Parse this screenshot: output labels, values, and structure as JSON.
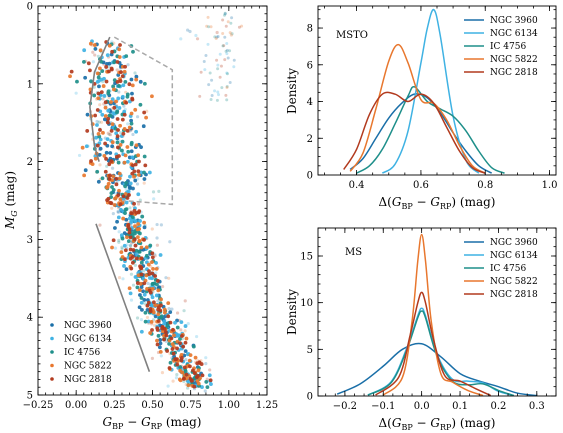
{
  "chart_data": [
    {
      "type": "scatter",
      "panel": "cmd",
      "xlabel": "G_BP − G_RP (mag)",
      "ylabel": "M_G (mag)",
      "xlim": [
        -0.25,
        1.25
      ],
      "ylim": [
        5,
        0
      ],
      "xticks": [
        "−0.25",
        "0.00",
        "0.25",
        "0.50",
        "0.75",
        "1.00",
        "1.25"
      ],
      "xtick_values": [
        -0.25,
        0,
        0.25,
        0.5,
        0.75,
        1.0,
        1.25
      ],
      "yticks": [
        "0",
        "1",
        "2",
        "3",
        "4",
        "5"
      ],
      "ytick_values": [
        0,
        1,
        2,
        3,
        4,
        5
      ],
      "legend_position": "lower-left",
      "series": [
        {
          "name": "NGC 3960",
          "color": "#1a6fa8"
        },
        {
          "name": "NGC 6134",
          "color": "#3fb2e3"
        },
        {
          "name": "IC 4756",
          "color": "#1e8f8a"
        },
        {
          "name": "NGC 5822",
          "color": "#e8772e"
        },
        {
          "name": "NGC 2818",
          "color": "#b23a1e"
        }
      ],
      "ridge": [
        [
          0.16,
          0.45
        ],
        [
          0.17,
          0.8
        ],
        [
          0.18,
          1.2
        ],
        [
          0.19,
          1.6
        ],
        [
          0.2,
          1.95
        ],
        [
          0.26,
          2.3
        ],
        [
          0.32,
          2.7
        ],
        [
          0.37,
          3.1
        ],
        [
          0.43,
          3.5
        ],
        [
          0.5,
          3.9
        ],
        [
          0.57,
          4.2
        ],
        [
          0.65,
          4.5
        ],
        [
          0.74,
          4.8
        ],
        [
          0.8,
          5.0
        ]
      ],
      "msto_box_dashed": [
        [
          0.25,
          0.4
        ],
        [
          0.63,
          0.82
        ],
        [
          0.63,
          2.55
        ],
        [
          0.3,
          2.5
        ]
      ],
      "envelope_upper_solid": [
        [
          0.22,
          0.4
        ],
        [
          0.12,
          0.85
        ],
        [
          0.09,
          1.3
        ],
        [
          0.12,
          1.8
        ],
        [
          0.15,
          2.0
        ]
      ],
      "envelope_lower_solid": [
        [
          0.13,
          2.8
        ],
        [
          0.48,
          4.7
        ]
      ]
    },
    {
      "type": "area",
      "panel": "msto",
      "label": "MSTO",
      "xlabel": "Δ(G_BP − G_RP) (mag)",
      "ylabel": "Density",
      "xlim": [
        0.28,
        1.02
      ],
      "ylim": [
        0,
        9.2
      ],
      "xticks": [
        "0.4",
        "0.6",
        "0.8",
        "1.0"
      ],
      "xtick_values": [
        0.4,
        0.6,
        0.8,
        1.0
      ],
      "yticks": [
        "0",
        "2",
        "4",
        "6",
        "8"
      ],
      "ytick_values": [
        0,
        2,
        4,
        6,
        8
      ],
      "legend_position": "top-right",
      "series": [
        {
          "name": "NGC 3960",
          "color": "#1a6fa8",
          "x": [
            0.38,
            0.42,
            0.46,
            0.5,
            0.54,
            0.58,
            0.62,
            0.66,
            0.7,
            0.74,
            0.78,
            0.82
          ],
          "y": [
            0.3,
            0.9,
            2.0,
            3.1,
            3.9,
            4.4,
            4.2,
            3.4,
            2.3,
            1.3,
            0.5,
            0.1
          ]
        },
        {
          "name": "NGC 6134",
          "color": "#3fb2e3",
          "x": [
            0.48,
            0.52,
            0.56,
            0.6,
            0.62,
            0.64,
            0.66,
            0.7,
            0.74,
            0.78
          ],
          "y": [
            0.1,
            0.6,
            2.4,
            6.1,
            8.0,
            9.0,
            7.6,
            3.2,
            0.8,
            0.1
          ]
        },
        {
          "name": "IC 4756",
          "color": "#1e8f8a",
          "x": [
            0.4,
            0.44,
            0.48,
            0.52,
            0.56,
            0.58,
            0.62,
            0.66,
            0.7,
            0.74,
            0.78,
            0.82,
            0.86
          ],
          "y": [
            0.1,
            0.5,
            1.4,
            2.8,
            4.3,
            4.8,
            4.0,
            3.6,
            3.2,
            2.4,
            1.3,
            0.4,
            0.1
          ]
        },
        {
          "name": "NGC 5822",
          "color": "#e8772e",
          "x": [
            0.38,
            0.42,
            0.46,
            0.5,
            0.53,
            0.56,
            0.6,
            0.64,
            0.68,
            0.72,
            0.76,
            0.8
          ],
          "y": [
            0.2,
            1.2,
            3.6,
            6.2,
            7.1,
            6.1,
            4.1,
            3.9,
            3.0,
            1.6,
            0.5,
            0.1
          ]
        },
        {
          "name": "NGC 2818",
          "color": "#b23a1e",
          "x": [
            0.36,
            0.4,
            0.44,
            0.48,
            0.52,
            0.56,
            0.6,
            0.64,
            0.68,
            0.72,
            0.76,
            0.8
          ],
          "y": [
            0.3,
            1.4,
            3.3,
            4.4,
            4.4,
            4.0,
            4.4,
            3.9,
            2.6,
            1.3,
            0.4,
            0.1
          ]
        }
      ]
    },
    {
      "type": "area",
      "panel": "ms",
      "label": "MS",
      "xlabel": "Δ(G_BP − G_RP) (mag)",
      "ylabel": "Density",
      "xlim": [
        -0.27,
        0.35
      ],
      "ylim": [
        0,
        18
      ],
      "xticks": [
        "−0.2",
        "−0.1",
        "0.0",
        "0.1",
        "0.2",
        "0.3"
      ],
      "xtick_values": [
        -0.2,
        -0.1,
        0.0,
        0.1,
        0.2,
        0.3
      ],
      "yticks": [
        "0",
        "5",
        "10",
        "15"
      ],
      "ytick_values": [
        0,
        5,
        10,
        15
      ],
      "legend_position": "top-right",
      "series": [
        {
          "name": "NGC 3960",
          "color": "#1a6fa8",
          "x": [
            -0.22,
            -0.16,
            -0.1,
            -0.05,
            0.0,
            0.05,
            0.1,
            0.15,
            0.2,
            0.25,
            0.3
          ],
          "y": [
            0.2,
            1.3,
            3.2,
            5.0,
            5.6,
            4.2,
            2.4,
            1.6,
            1.0,
            0.3,
            0.05
          ]
        },
        {
          "name": "NGC 6134",
          "color": "#3fb2e3",
          "x": [
            -0.14,
            -0.08,
            -0.04,
            -0.01,
            0.0,
            0.01,
            0.04,
            0.08,
            0.12,
            0.16,
            0.2,
            0.24
          ],
          "y": [
            0.1,
            1.5,
            5.0,
            8.6,
            9.4,
            8.6,
            4.5,
            1.8,
            1.6,
            1.4,
            0.5,
            0.05
          ]
        },
        {
          "name": "IC 4756",
          "color": "#1e8f8a",
          "x": [
            -0.14,
            -0.08,
            -0.04,
            -0.01,
            0.0,
            0.01,
            0.04,
            0.08,
            0.12,
            0.16,
            0.2,
            0.24
          ],
          "y": [
            0.1,
            1.4,
            4.8,
            8.4,
            9.1,
            8.4,
            4.3,
            1.6,
            1.2,
            1.3,
            0.6,
            0.05
          ]
        },
        {
          "name": "NGC 5822",
          "color": "#e8772e",
          "x": [
            -0.1,
            -0.05,
            -0.025,
            -0.01,
            0.0,
            0.01,
            0.025,
            0.05,
            0.08,
            0.12,
            0.16
          ],
          "y": [
            0.1,
            2.0,
            8.0,
            14.5,
            17.3,
            14.5,
            8.0,
            2.4,
            1.5,
            0.6,
            0.05
          ]
        },
        {
          "name": "NGC 2818",
          "color": "#b23a1e",
          "x": [
            -0.12,
            -0.06,
            -0.03,
            -0.01,
            0.0,
            0.01,
            0.03,
            0.06,
            0.1,
            0.14,
            0.18
          ],
          "y": [
            0.1,
            2.0,
            6.5,
            10.0,
            11.1,
            10.0,
            6.2,
            2.2,
            1.6,
            0.8,
            0.05
          ]
        }
      ]
    }
  ]
}
